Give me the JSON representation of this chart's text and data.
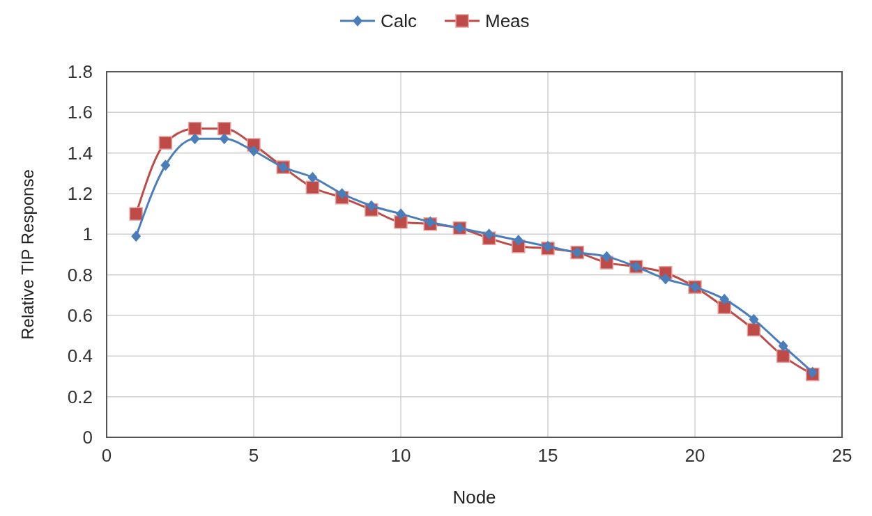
{
  "chart_data": {
    "type": "line",
    "xlabel": "Node",
    "ylabel": "Relative TIP Response",
    "x": [
      1,
      2,
      3,
      4,
      5,
      6,
      7,
      8,
      9,
      10,
      11,
      12,
      13,
      14,
      15,
      16,
      17,
      18,
      19,
      20,
      21,
      22,
      23,
      24
    ],
    "series": [
      {
        "name": "Calc",
        "color": "#4a7ebb",
        "marker": "diamond",
        "values": [
          0.99,
          1.34,
          1.47,
          1.47,
          1.41,
          1.33,
          1.28,
          1.2,
          1.14,
          1.1,
          1.06,
          1.03,
          1.0,
          0.97,
          0.94,
          0.91,
          0.89,
          0.84,
          0.78,
          0.74,
          0.68,
          0.58,
          0.45,
          0.32
        ]
      },
      {
        "name": "Meas",
        "color": "#be4b48",
        "marker": "square",
        "values": [
          1.1,
          1.45,
          1.52,
          1.52,
          1.44,
          1.33,
          1.23,
          1.18,
          1.12,
          1.06,
          1.05,
          1.03,
          0.98,
          0.94,
          0.93,
          0.91,
          0.86,
          0.84,
          0.81,
          0.74,
          0.64,
          0.53,
          0.4,
          0.31
        ]
      }
    ],
    "xlim": [
      0,
      25
    ],
    "xticks": [
      0,
      5,
      10,
      15,
      20,
      25
    ],
    "ylim": [
      0,
      1.8
    ],
    "yticks": [
      0,
      {
        "value": 0.2,
        "label": "0.2"
      },
      {
        "value": 0.4,
        "label": "0.4"
      },
      {
        "value": 0.6,
        "label": "0.6"
      },
      {
        "value": 0.8,
        "label": "0.8"
      },
      1,
      {
        "value": 1.2,
        "label": "1.2"
      },
      {
        "value": 1.4,
        "label": "1.4"
      },
      {
        "value": 1.6,
        "label": "1.6"
      },
      {
        "value": 1.8,
        "label": "1.8"
      }
    ],
    "grid": true,
    "legend": "top",
    "line_style": "solid"
  }
}
